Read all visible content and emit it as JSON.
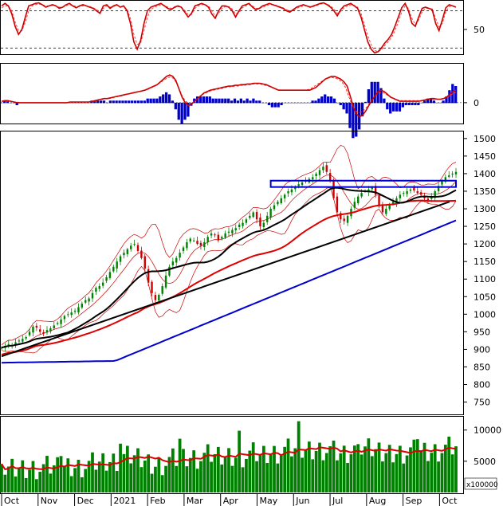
{
  "chart_data": {
    "type": "candlestick-with-indicators",
    "x_axis": {
      "months": [
        "Oct",
        "Nov",
        "Dec",
        "2021",
        "Feb",
        "Mar",
        "Apr",
        "May",
        "Jun",
        "Jul",
        "Aug",
        "Sep",
        "Oct"
      ]
    },
    "stochastic_panel": {
      "yticks": [
        50
      ],
      "ref_levels": [
        20,
        80
      ],
      "ylim": [
        10,
        95
      ],
      "k_line": [
        88,
        92,
        88,
        75,
        55,
        42,
        50,
        70,
        88,
        90,
        92,
        93,
        90,
        86,
        88,
        90,
        88,
        84,
        86,
        90,
        92,
        88,
        85,
        88,
        90,
        88,
        86,
        84,
        80,
        76,
        88,
        90,
        84,
        88,
        90,
        86,
        88,
        80,
        60,
        30,
        18,
        32,
        60,
        80,
        86,
        88,
        90,
        92,
        88,
        84,
        82,
        86,
        88,
        86,
        78,
        70,
        76,
        88,
        90,
        92,
        90,
        86,
        75,
        68,
        80,
        88,
        88,
        86,
        80,
        70,
        80,
        88,
        90,
        92,
        86,
        82,
        84,
        88,
        90,
        92,
        90,
        88,
        86,
        84,
        80,
        78,
        82,
        86,
        88,
        90,
        88,
        86,
        88,
        90,
        92,
        93,
        90,
        86,
        80,
        72,
        82,
        88,
        90,
        92,
        88,
        84,
        70,
        50,
        30,
        18,
        12,
        14,
        20,
        28,
        34,
        42,
        55,
        70,
        85,
        92,
        80,
        60,
        55,
        70,
        84,
        86,
        84,
        82,
        60,
        48,
        66,
        85,
        90,
        88,
        86
      ],
      "d_line": [
        85,
        88,
        88,
        80,
        62,
        48,
        48,
        62,
        80,
        88,
        90,
        91,
        90,
        88,
        88,
        89,
        88,
        86,
        86,
        88,
        90,
        89,
        87,
        87,
        88,
        88,
        87,
        85,
        82,
        78,
        84,
        88,
        86,
        87,
        89,
        87,
        87,
        83,
        68,
        42,
        26,
        28,
        48,
        70,
        82,
        86,
        88,
        90,
        89,
        86,
        84,
        85,
        87,
        86,
        81,
        74,
        74,
        84,
        88,
        90,
        90,
        88,
        80,
        72,
        76,
        84,
        87,
        87,
        83,
        75,
        77,
        85,
        88,
        90,
        88,
        84,
        84,
        86,
        88,
        90,
        90,
        89,
        87,
        85,
        82,
        80,
        81,
        84,
        86,
        88,
        88,
        87,
        87,
        89,
        91,
        92,
        91,
        88,
        83,
        76,
        79,
        85,
        88,
        90,
        89,
        86,
        76,
        58,
        40,
        25,
        16,
        14,
        17,
        24,
        30,
        37,
        48,
        62,
        78,
        88,
        84,
        68,
        58,
        65,
        78,
        84,
        84,
        83,
        68,
        54,
        60,
        78,
        87,
        88,
        87
      ]
    },
    "macd_panel": {
      "yticks": [
        0
      ],
      "ylim": [
        -30,
        55
      ],
      "macd_line": [
        2,
        3,
        3,
        2,
        1,
        0,
        0,
        0,
        0,
        0,
        0,
        0,
        0,
        0,
        0,
        0,
        0,
        0,
        0,
        0,
        0,
        0,
        1,
        1,
        1,
        1,
        1,
        1,
        1,
        2,
        3,
        4,
        5,
        6,
        6,
        7,
        8,
        9,
        10,
        11,
        12,
        13,
        14,
        15,
        16,
        17,
        18,
        20,
        22,
        24,
        26,
        30,
        34,
        38,
        40,
        38,
        32,
        20,
        8,
        0,
        -4,
        -2,
        2,
        6,
        10,
        14,
        16,
        18,
        19,
        20,
        21,
        22,
        23,
        24,
        24,
        25,
        25,
        26,
        26,
        27,
        27,
        28,
        28,
        28,
        27,
        26,
        24,
        22,
        20,
        18,
        18,
        18,
        18,
        18,
        18,
        18,
        18,
        18,
        18,
        18,
        20,
        22,
        26,
        30,
        34,
        36,
        38,
        38,
        36,
        34,
        30,
        24,
        10,
        -6,
        -16,
        -20,
        -18,
        -12,
        -4,
        4,
        10,
        16,
        18,
        16,
        12,
        8,
        6,
        4,
        2,
        2,
        2,
        2,
        2,
        2,
        2,
        3,
        4,
        5,
        6,
        6,
        5,
        5,
        6,
        8,
        12,
        16,
        18
      ],
      "signal_line": [
        2,
        2,
        2,
        2,
        1,
        1,
        0,
        0,
        0,
        0,
        0,
        0,
        0,
        0,
        0,
        0,
        0,
        0,
        0,
        0,
        0,
        0,
        1,
        1,
        1,
        1,
        1,
        1,
        1,
        1,
        2,
        3,
        4,
        5,
        6,
        6,
        7,
        8,
        9,
        10,
        11,
        12,
        13,
        14,
        15,
        16,
        17,
        18,
        20,
        22,
        24,
        27,
        30,
        33,
        36,
        37,
        35,
        28,
        18,
        8,
        2,
        -1,
        0,
        3,
        7,
        11,
        13,
        15,
        17,
        18,
        19,
        20,
        21,
        22,
        23,
        23,
        24,
        24,
        25,
        25,
        26,
        26,
        27,
        27,
        27,
        26,
        25,
        24,
        22,
        20,
        19,
        18,
        18,
        18,
        18,
        18,
        18,
        18,
        18,
        18,
        19,
        21,
        24,
        27,
        30,
        33,
        35,
        36,
        36,
        35,
        33,
        29,
        22,
        10,
        -2,
        -10,
        -14,
        -14,
        -11,
        -6,
        0,
        6,
        11,
        14,
        15,
        13,
        10,
        8,
        6,
        4,
        3,
        3,
        3,
        3,
        3,
        3,
        3,
        3,
        4,
        5,
        5,
        5,
        5,
        5,
        6,
        7,
        10,
        13,
        15
      ]
    },
    "price_panel": {
      "yticks": [
        750,
        800,
        850,
        900,
        950,
        1000,
        1050,
        1100,
        1150,
        1200,
        1250,
        1300,
        1350,
        1400,
        1450,
        1500
      ],
      "ylim": [
        715,
        1520
      ],
      "close": [
        905,
        910,
        915,
        912,
        920,
        925,
        930,
        935,
        950,
        965,
        962,
        950,
        945,
        955,
        960,
        968,
        975,
        985,
        995,
        1000,
        1005,
        1010,
        1020,
        1030,
        1040,
        1045,
        1060,
        1075,
        1080,
        1090,
        1105,
        1120,
        1135,
        1150,
        1165,
        1175,
        1185,
        1195,
        1200,
        1180,
        1160,
        1130,
        1090,
        1060,
        1040,
        1055,
        1080,
        1110,
        1135,
        1150,
        1160,
        1175,
        1190,
        1205,
        1215,
        1210,
        1200,
        1195,
        1205,
        1220,
        1230,
        1225,
        1210,
        1220,
        1230,
        1235,
        1240,
        1245,
        1255,
        1260,
        1270,
        1280,
        1290,
        1270,
        1250,
        1260,
        1280,
        1300,
        1310,
        1320,
        1330,
        1340,
        1350,
        1355,
        1360,
        1370,
        1375,
        1380,
        1385,
        1390,
        1400,
        1410,
        1420,
        1405,
        1380,
        1330,
        1290,
        1270,
        1265,
        1280,
        1300,
        1320,
        1335,
        1345,
        1350,
        1355,
        1360,
        1340,
        1310,
        1290,
        1300,
        1310,
        1320,
        1330,
        1340,
        1345,
        1350,
        1355,
        1352,
        1345,
        1340,
        1330,
        1325,
        1335,
        1350,
        1365,
        1380,
        1390,
        1395,
        1400,
        1405
      ],
      "volume_yticks": [
        5000,
        10000
      ],
      "volume_ylim": [
        0,
        12000
      ],
      "volume_unit": "x100000"
    }
  }
}
